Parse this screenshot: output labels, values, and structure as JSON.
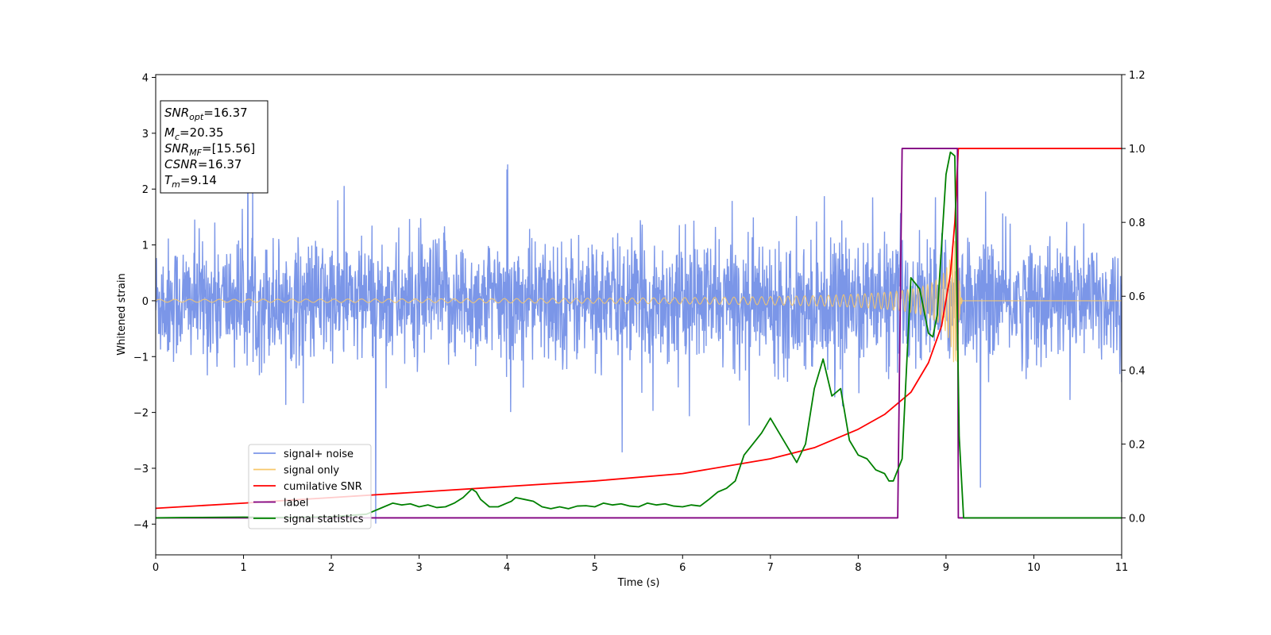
{
  "chart_data": {
    "type": "line",
    "xlabel": "Time (s)",
    "ylabel": "Whitened strain",
    "ylabel_right": "",
    "xlim": [
      0,
      11
    ],
    "ylim_left": [
      -4.55,
      4.05
    ],
    "ylim_right": [
      -0.1,
      1.2
    ],
    "xticks": [
      0,
      1,
      2,
      3,
      4,
      5,
      6,
      7,
      8,
      9,
      10,
      11
    ],
    "yticks_left": [
      -4,
      -3,
      -2,
      -1,
      0,
      1,
      2,
      3,
      4
    ],
    "yticks_right": [
      0.0,
      0.2,
      0.4,
      0.6,
      0.8,
      1.0,
      1.2
    ],
    "grid": false,
    "legend_position": "lower-left",
    "annotation": [
      {
        "base": "SNR",
        "sub": "opt",
        "value": "=16.37"
      },
      {
        "base": "M",
        "sub": "c",
        "value": "=20.35"
      },
      {
        "base": "SNR",
        "sub": "MF",
        "value": "=[15.56]"
      },
      {
        "base": "CSNR",
        "sub": "",
        "value": "=16.37"
      },
      {
        "base": "T",
        "sub": "m",
        "value": "=9.14"
      }
    ],
    "series": [
      {
        "name": "signal+ noise",
        "color": "#7b96e8",
        "axis": "left",
        "kind": "noise",
        "band_sigma": 0.55,
        "x_range": [
          0,
          11
        ],
        "notes": ""
      },
      {
        "name": "signal only",
        "color": "#f7c86a",
        "axis": "left",
        "kind": "chirp",
        "merger_time": 9.14,
        "peak_amplitude": 1.1
      },
      {
        "name": "cumilative SNR",
        "color": "#ff0000",
        "axis": "right",
        "x": [
          0,
          1,
          2,
          3,
          4,
          5,
          6,
          7,
          7.5,
          8,
          8.3,
          8.6,
          8.8,
          8.95,
          9.05,
          9.1,
          9.14,
          9.15,
          11
        ],
        "y": [
          0.026,
          0.04,
          0.055,
          0.07,
          0.085,
          0.1,
          0.12,
          0.16,
          0.19,
          0.24,
          0.28,
          0.34,
          0.42,
          0.52,
          0.66,
          0.8,
          1.0,
          1.0,
          1.0
        ]
      },
      {
        "name": "label",
        "color": "#800080",
        "axis": "right",
        "x": [
          0,
          8.45,
          8.5,
          9.13,
          9.14,
          11
        ],
        "y": [
          0,
          0,
          1,
          1,
          0,
          0
        ]
      },
      {
        "name": "signal statistics",
        "color": "#008000",
        "axis": "right",
        "x": [
          0,
          0.3,
          1.0,
          1.5,
          2.0,
          2.4,
          2.6,
          2.7,
          2.8,
          2.9,
          3.0,
          3.1,
          3.2,
          3.3,
          3.4,
          3.5,
          3.6,
          3.65,
          3.7,
          3.8,
          3.9,
          4.0,
          4.05,
          4.1,
          4.2,
          4.3,
          4.4,
          4.5,
          4.6,
          4.7,
          4.8,
          4.9,
          5.0,
          5.1,
          5.2,
          5.3,
          5.4,
          5.5,
          5.6,
          5.7,
          5.8,
          5.9,
          6.0,
          6.1,
          6.2,
          6.3,
          6.4,
          6.5,
          6.6,
          6.7,
          6.8,
          6.9,
          7.0,
          7.1,
          7.2,
          7.3,
          7.4,
          7.5,
          7.6,
          7.7,
          7.8,
          7.9,
          8.0,
          8.1,
          8.2,
          8.3,
          8.35,
          8.4,
          8.5,
          8.6,
          8.7,
          8.8,
          8.85,
          8.9,
          9.0,
          9.05,
          9.1,
          9.15,
          9.2,
          11
        ],
        "y": [
          0,
          0.001,
          0.002,
          0.001,
          0.003,
          0.01,
          0.03,
          0.04,
          0.035,
          0.038,
          0.03,
          0.035,
          0.028,
          0.03,
          0.04,
          0.055,
          0.078,
          0.07,
          0.05,
          0.03,
          0.03,
          0.04,
          0.045,
          0.055,
          0.05,
          0.045,
          0.03,
          0.025,
          0.03,
          0.025,
          0.032,
          0.033,
          0.03,
          0.04,
          0.035,
          0.038,
          0.032,
          0.03,
          0.04,
          0.035,
          0.038,
          0.032,
          0.03,
          0.035,
          0.032,
          0.05,
          0.07,
          0.08,
          0.1,
          0.17,
          0.2,
          0.23,
          0.27,
          0.23,
          0.19,
          0.15,
          0.2,
          0.35,
          0.43,
          0.33,
          0.35,
          0.21,
          0.17,
          0.16,
          0.13,
          0.12,
          0.1,
          0.1,
          0.16,
          0.65,
          0.62,
          0.5,
          0.49,
          0.55,
          0.93,
          0.99,
          0.98,
          0.22,
          0.0,
          0.0
        ]
      }
    ]
  }
}
